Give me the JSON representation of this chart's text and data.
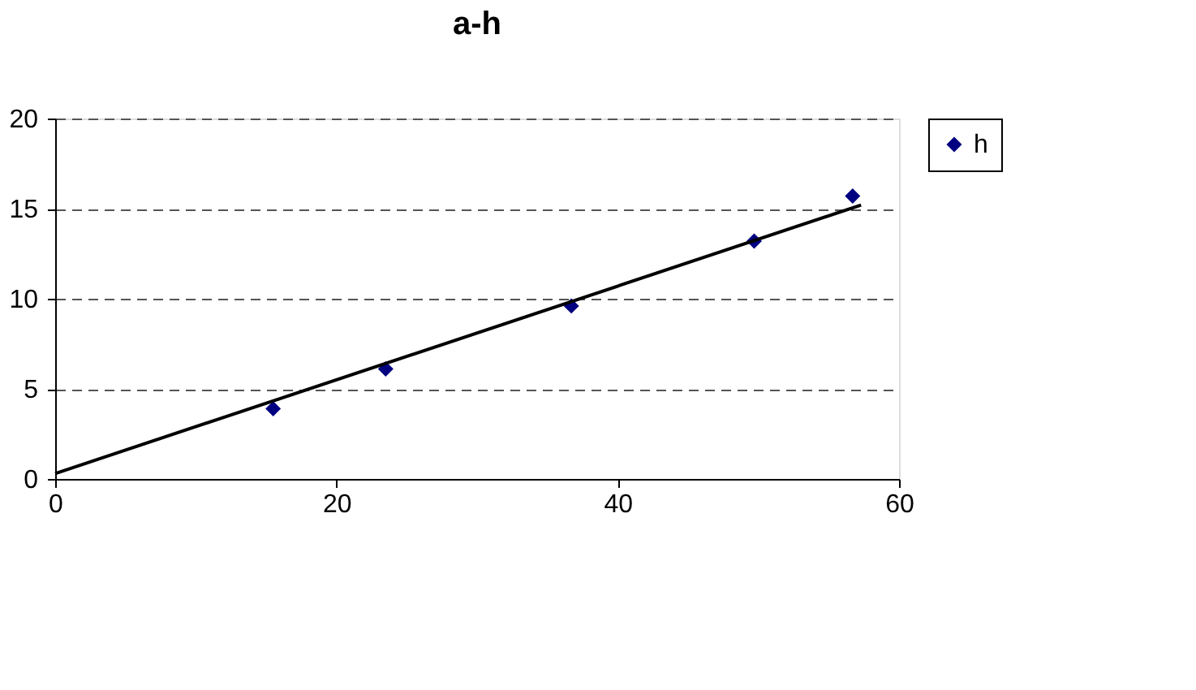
{
  "chart_data": {
    "type": "scatter",
    "title": "a-h",
    "series": [
      {
        "name": "h",
        "color": "#000080",
        "marker": "diamond",
        "x": [
          15.5,
          23.5,
          36.7,
          49.7,
          56.7
        ],
        "values": [
          3.9,
          6.1,
          9.6,
          13.2,
          15.7
        ]
      },
      {
        "type": "line",
        "color": "#000000",
        "line_style": "solid",
        "x": [
          0,
          57.3
        ],
        "values": [
          0.3,
          15.2
        ]
      }
    ],
    "xlim": [
      0,
      60
    ],
    "xticks": [
      0,
      20,
      40,
      60
    ],
    "ylim": [
      0,
      20
    ],
    "yticks": [
      0,
      5,
      10,
      15,
      20
    ],
    "grid": "y",
    "legend": "right"
  }
}
